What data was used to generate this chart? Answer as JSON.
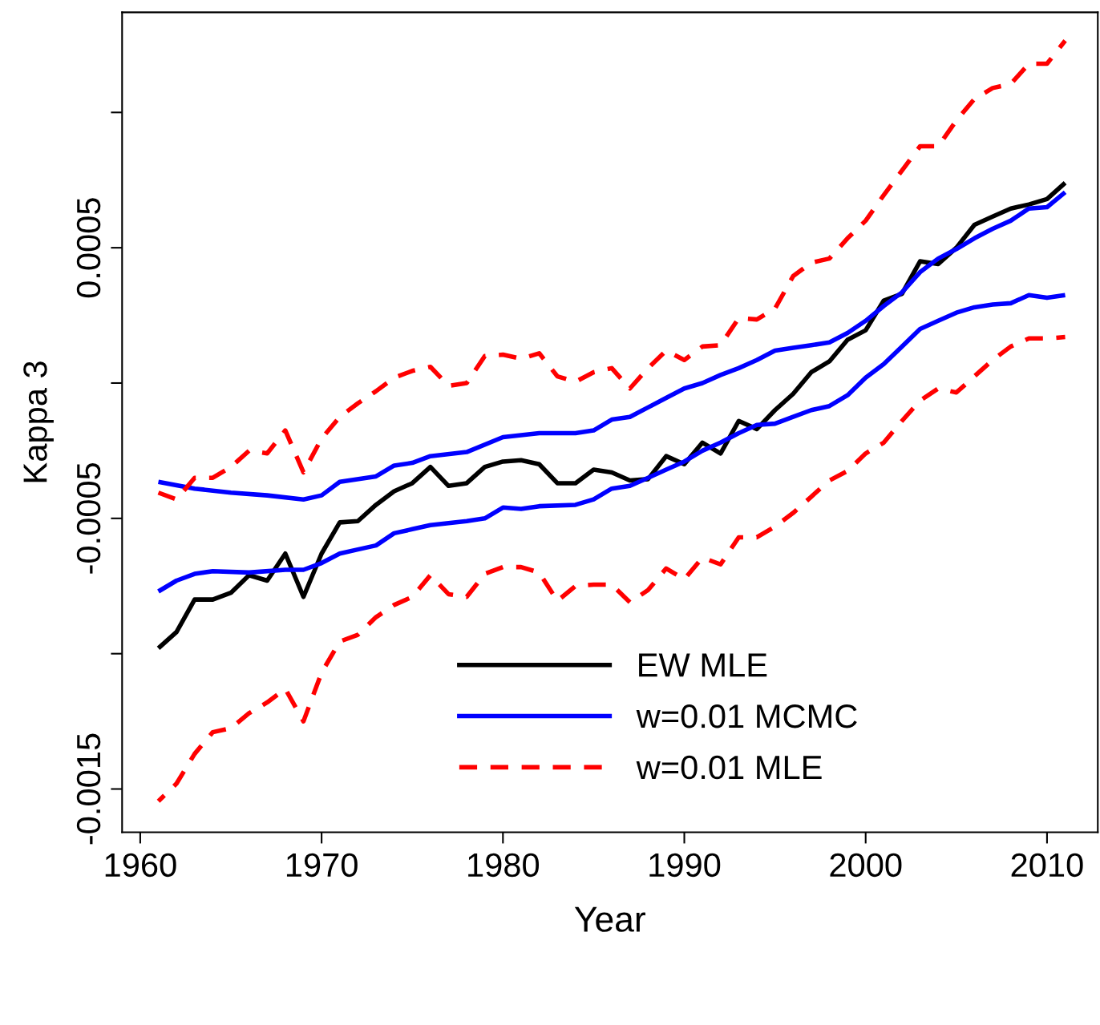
{
  "chart_data": {
    "type": "line",
    "xlabel": "Year",
    "ylabel": "Kappa 3",
    "xlim": [
      1959,
      2012.8
    ],
    "xticks": [
      1960,
      1970,
      1980,
      1990,
      2000,
      2010
    ],
    "ylim": [
      -0.00166,
      0.00137
    ],
    "yticks": [
      {
        "value": -0.0015,
        "label": "-0.0015"
      },
      {
        "value": -0.001,
        "label": null
      },
      {
        "value": -0.0005,
        "label": "-0.0005"
      },
      {
        "value": 0,
        "label": null
      },
      {
        "value": 0.0005,
        "label": "0.0005"
      },
      {
        "value": 0.001,
        "label": null
      }
    ],
    "grid": false,
    "legend": "bottom",
    "marker": "none",
    "series": [
      {
        "name": "EW MLE",
        "color": "#000000",
        "line_style": "solid",
        "x": [
          1961,
          1962,
          1963,
          1964,
          1965,
          1966,
          1967,
          1968,
          1969,
          1970,
          1971,
          1972,
          1973,
          1974,
          1975,
          1976,
          1977,
          1978,
          1979,
          1980,
          1981,
          1982,
          1983,
          1984,
          1985,
          1986,
          1987,
          1988,
          1989,
          1990,
          1991,
          1992,
          1993,
          1994,
          1995,
          1996,
          1997,
          1998,
          1999,
          2000,
          2001,
          2002,
          2003,
          2004,
          2005,
          2006,
          2007,
          2008,
          2009,
          2010,
          2011
        ],
        "values": [
          -0.00098,
          -0.00092,
          -0.0008,
          -0.0008,
          -0.000775,
          -0.00071,
          -0.00073,
          -0.00063,
          -0.00079,
          -0.00063,
          -0.000515,
          -0.00051,
          -0.00045,
          -0.0004,
          -0.00037,
          -0.00031,
          -0.00038,
          -0.00037,
          -0.00031,
          -0.00029,
          -0.000285,
          -0.0003,
          -0.00037,
          -0.00037,
          -0.00032,
          -0.00033,
          -0.00036,
          -0.000355,
          -0.00027,
          -0.0003,
          -0.00022,
          -0.00026,
          -0.00014,
          -0.00017,
          -0.0001,
          -4e-05,
          4e-05,
          8e-05,
          0.00016,
          0.000195,
          0.000305,
          0.00033,
          0.00045,
          0.00044,
          0.0005,
          0.000585,
          0.000615,
          0.000645,
          0.00066,
          0.00068,
          0.00074
        ]
      },
      {
        "name": "w=0.01 MCMC",
        "color": "#0000ff",
        "line_style": "solid",
        "x": [
          1961,
          1963,
          1965,
          1967,
          1969,
          1970,
          1971,
          1973,
          1974,
          1975,
          1976,
          1978,
          1980,
          1982,
          1984,
          1985,
          1986,
          1987,
          1988,
          1989,
          1990,
          1991,
          1992,
          1993,
          1994,
          1995,
          1996,
          1997,
          1998,
          1999,
          2000,
          2001,
          2002,
          2003,
          2004,
          2005,
          2006,
          2007,
          2008,
          2009,
          2010,
          2011
        ],
        "values": [
          -0.000365,
          -0.00039,
          -0.000405,
          -0.000415,
          -0.00043,
          -0.000415,
          -0.000365,
          -0.000345,
          -0.000305,
          -0.000295,
          -0.00027,
          -0.000255,
          -0.0002,
          -0.000185,
          -0.000185,
          -0.000175,
          -0.000135,
          -0.000125,
          -9e-05,
          -5.5e-05,
          -2e-05,
          0.0,
          3e-05,
          5.5e-05,
          8.5e-05,
          0.00012,
          0.00013,
          0.00014,
          0.00015,
          0.000185,
          0.00023,
          0.000285,
          0.000335,
          0.00041,
          0.00046,
          0.000495,
          0.000535,
          0.00057,
          0.0006,
          0.000645,
          0.00065,
          0.000705
        ]
      },
      {
        "color": "#0000ff",
        "line_style": "solid",
        "x": [
          1961,
          1962,
          1963,
          1964,
          1966,
          1968,
          1969,
          1970,
          1971,
          1972,
          1973,
          1974,
          1975,
          1976,
          1978,
          1979,
          1980,
          1981,
          1982,
          1984,
          1985,
          1986,
          1987,
          1988,
          1989,
          1990,
          1991,
          1992,
          1993,
          1994,
          1995,
          1996,
          1997,
          1998,
          1999,
          2000,
          2001,
          2002,
          2003,
          2004,
          2005,
          2006,
          2007,
          2008,
          2009,
          2010,
          2011
        ],
        "values": [
          -0.00077,
          -0.00073,
          -0.000705,
          -0.000695,
          -0.0007,
          -0.00069,
          -0.00069,
          -0.000665,
          -0.00063,
          -0.000615,
          -0.0006,
          -0.000555,
          -0.00054,
          -0.000525,
          -0.00051,
          -0.0005,
          -0.00046,
          -0.000465,
          -0.000455,
          -0.00045,
          -0.00043,
          -0.00039,
          -0.00038,
          -0.00035,
          -0.00032,
          -0.00029,
          -0.00025,
          -0.00022,
          -0.000185,
          -0.000155,
          -0.00015,
          -0.000125,
          -0.0001,
          -8.5e-05,
          -4.5e-05,
          2e-05,
          7e-05,
          0.000135,
          0.0002,
          0.00023,
          0.00026,
          0.00028,
          0.00029,
          0.000295,
          0.000325,
          0.000315,
          0.000325
        ]
      },
      {
        "name": "w=0.01 MLE",
        "color": "#ff0000",
        "line_style": "dashed",
        "x": [
          1961,
          1962,
          1963,
          1964,
          1965,
          1966,
          1967,
          1968,
          1969,
          1970,
          1971,
          1972,
          1973,
          1974,
          1975,
          1976,
          1977,
          1978,
          1979,
          1980,
          1981,
          1982,
          1983,
          1984,
          1985,
          1986,
          1987,
          1988,
          1989,
          1990,
          1991,
          1992,
          1993,
          1994,
          1995,
          1996,
          1997,
          1998,
          1999,
          2000,
          2001,
          2002,
          2003,
          2004,
          2005,
          2006,
          2007,
          2008,
          2009,
          2010,
          2011
        ],
        "values": [
          -0.000405,
          -0.00043,
          -0.00035,
          -0.00035,
          -0.00031,
          -0.00025,
          -0.00026,
          -0.000175,
          -0.00033,
          -0.000205,
          -0.000125,
          -7.5e-05,
          -3e-05,
          2e-05,
          4.5e-05,
          6e-05,
          -1e-05,
          0.0,
          0.0001,
          0.000105,
          9e-05,
          0.00011,
          2.5e-05,
          5e-06,
          4e-05,
          5.5e-05,
          -2e-05,
          5.5e-05,
          0.00012,
          8.5e-05,
          0.000135,
          0.00014,
          0.00024,
          0.000235,
          0.000275,
          0.000395,
          0.000445,
          0.00046,
          0.000535,
          0.0006,
          0.000695,
          0.000785,
          0.000875,
          0.000875,
          0.00097,
          0.00105,
          0.00109,
          0.001105,
          0.00118,
          0.00118,
          0.001265
        ]
      },
      {
        "color": "#ff0000",
        "line_style": "dashed",
        "x": [
          1961,
          1962,
          1963,
          1964,
          1965,
          1966,
          1967,
          1968,
          1969,
          1970,
          1971,
          1972,
          1973,
          1974,
          1975,
          1976,
          1977,
          1978,
          1979,
          1980,
          1981,
          1982,
          1983,
          1984,
          1985,
          1986,
          1987,
          1988,
          1989,
          1990,
          1991,
          1992,
          1993,
          1994,
          1995,
          1996,
          1997,
          1998,
          1999,
          2000,
          2001,
          2002,
          2003,
          2004,
          2005,
          2006,
          2007,
          2008,
          2009,
          2010,
          2011
        ],
        "values": [
          -0.001545,
          -0.00148,
          -0.00137,
          -0.00129,
          -0.001275,
          -0.00122,
          -0.00118,
          -0.00113,
          -0.00125,
          -0.00107,
          -0.000955,
          -0.00093,
          -0.000865,
          -0.00082,
          -0.00079,
          -0.00071,
          -0.00078,
          -0.00079,
          -0.000705,
          -0.00068,
          -0.00068,
          -0.0007,
          -0.000805,
          -0.00075,
          -0.000745,
          -0.000745,
          -0.00081,
          -0.000765,
          -0.000685,
          -0.000725,
          -0.000645,
          -0.00067,
          -0.00057,
          -0.00057,
          -0.00053,
          -0.00048,
          -0.00042,
          -0.00036,
          -0.000325,
          -0.00026,
          -0.00022,
          -0.00014,
          -6.5e-05,
          -2e-05,
          -3.5e-05,
          2.5e-05,
          8.5e-05,
          0.000135,
          0.000165,
          0.000165,
          0.00017
        ]
      }
    ]
  }
}
